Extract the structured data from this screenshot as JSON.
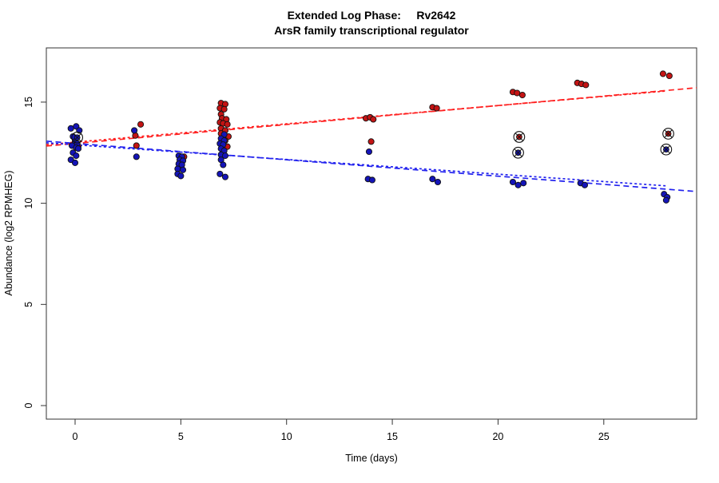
{
  "header": {
    "title_line1": "Extended Log Phase:     Rv2642",
    "title_line2": "ArsR family transcriptional regulator"
  },
  "chart_data": {
    "type": "scatter",
    "title": "Extended Log Phase:     Rv2642",
    "subtitle": "ArsR family transcriptional regulator",
    "xlabel": "Time  (days)",
    "ylabel": "Abundance  (log2 RPMHEG)",
    "xlim": [
      -1.36,
      29.39
    ],
    "ylim": [
      -0.67,
      17.68
    ],
    "x_ticks": [
      0,
      5,
      10,
      15,
      20,
      25
    ],
    "y_ticks": [
      0,
      5,
      10,
      15
    ],
    "grid": false,
    "legend": "none",
    "colors": {
      "red_point": "#c41414",
      "blue_point": "#1414b8",
      "red_line": "#ff2020",
      "blue_line": "#2121ee",
      "axis": "#333333",
      "flag_ring": "#111111"
    },
    "series": [
      {
        "name": "red",
        "point_color": "#c41414",
        "points": [
          [
            0.1,
            12.95
          ],
          [
            0.15,
            12.8
          ],
          [
            2.85,
            13.35
          ],
          [
            2.9,
            12.85
          ],
          [
            3.1,
            13.9
          ],
          [
            5.15,
            12.3
          ],
          [
            6.9,
            14.95
          ],
          [
            7.1,
            14.9
          ],
          [
            6.85,
            14.7
          ],
          [
            7.05,
            14.65
          ],
          [
            6.9,
            14.4
          ],
          [
            6.95,
            14.2
          ],
          [
            7.15,
            14.15
          ],
          [
            6.85,
            14.0
          ],
          [
            7.0,
            13.95
          ],
          [
            7.2,
            13.9
          ],
          [
            6.9,
            13.7
          ],
          [
            7.1,
            13.6
          ],
          [
            6.9,
            13.45
          ],
          [
            7.25,
            13.3
          ],
          [
            7.1,
            13.1
          ],
          [
            7.2,
            12.8
          ],
          [
            13.75,
            14.2
          ],
          [
            13.95,
            14.25
          ],
          [
            14.1,
            14.15
          ],
          [
            14.0,
            13.05
          ],
          [
            16.9,
            14.75
          ],
          [
            17.1,
            14.7
          ],
          [
            20.7,
            15.5
          ],
          [
            20.9,
            15.45
          ],
          [
            21.15,
            15.35
          ],
          [
            23.75,
            15.95
          ],
          [
            23.95,
            15.9
          ],
          [
            24.15,
            15.85
          ],
          [
            27.8,
            16.4
          ],
          [
            28.1,
            16.3
          ]
        ]
      },
      {
        "name": "blue",
        "point_color": "#1414b8",
        "points": [
          [
            -0.2,
            13.7
          ],
          [
            0.05,
            13.8
          ],
          [
            0.2,
            13.6
          ],
          [
            -0.1,
            13.3
          ],
          [
            0.0,
            13.05
          ],
          [
            0.1,
            12.95
          ],
          [
            -0.15,
            12.85
          ],
          [
            0.05,
            12.75
          ],
          [
            0.15,
            12.7
          ],
          [
            -0.1,
            12.5
          ],
          [
            0.05,
            12.35
          ],
          [
            -0.2,
            12.15
          ],
          [
            0.0,
            12.0
          ],
          [
            2.8,
            13.6
          ],
          [
            2.9,
            12.3
          ],
          [
            4.9,
            12.35
          ],
          [
            5.05,
            12.3
          ],
          [
            4.95,
            12.15
          ],
          [
            5.1,
            12.1
          ],
          [
            4.9,
            11.95
          ],
          [
            5.05,
            11.9
          ],
          [
            4.85,
            11.7
          ],
          [
            5.1,
            11.65
          ],
          [
            4.85,
            11.45
          ],
          [
            5.0,
            11.35
          ],
          [
            7.05,
            13.4
          ],
          [
            6.9,
            13.2
          ],
          [
            7.05,
            13.1
          ],
          [
            6.85,
            12.95
          ],
          [
            7.0,
            12.9
          ],
          [
            6.9,
            12.7
          ],
          [
            7.05,
            12.6
          ],
          [
            6.9,
            12.4
          ],
          [
            7.1,
            12.35
          ],
          [
            6.9,
            12.15
          ],
          [
            7.0,
            11.9
          ],
          [
            6.85,
            11.45
          ],
          [
            7.1,
            11.3
          ],
          [
            13.9,
            12.55
          ],
          [
            13.85,
            11.2
          ],
          [
            14.05,
            11.15
          ],
          [
            16.9,
            11.2
          ],
          [
            17.15,
            11.05
          ],
          [
            20.7,
            11.05
          ],
          [
            20.95,
            10.9
          ],
          [
            21.2,
            11.0
          ],
          [
            23.9,
            11.0
          ],
          [
            24.1,
            10.9
          ],
          [
            27.85,
            10.45
          ],
          [
            28.0,
            10.3
          ],
          [
            27.95,
            10.15
          ]
        ]
      }
    ],
    "flagged_points": [
      {
        "x": 0.1,
        "y": 13.25,
        "series": "blue"
      },
      {
        "x": 21.0,
        "y": 13.28,
        "series": "red"
      },
      {
        "x": 20.95,
        "y": 12.5,
        "series": "blue"
      },
      {
        "x": 28.05,
        "y": 13.44,
        "series": "red"
      },
      {
        "x": 27.95,
        "y": 12.66,
        "series": "blue"
      }
    ],
    "trend_lines": [
      {
        "name": "red-long-dash",
        "series": "red",
        "style": "dashed",
        "x1": -1.36,
        "y1": 12.83,
        "x2": 29.39,
        "y2": 15.71
      },
      {
        "name": "red-short-dash",
        "series": "red",
        "style": "dotted",
        "x1": -1.36,
        "y1": 12.9,
        "x2": 27.96,
        "y2": 15.55
      },
      {
        "name": "blue-long-dash",
        "series": "blue",
        "style": "dashed",
        "x1": -1.36,
        "y1": 13.07,
        "x2": 29.39,
        "y2": 10.58
      },
      {
        "name": "blue-short-dash",
        "series": "blue",
        "style": "dotted",
        "x1": -1.36,
        "y1": 12.99,
        "x2": 27.96,
        "y2": 10.86
      }
    ]
  }
}
